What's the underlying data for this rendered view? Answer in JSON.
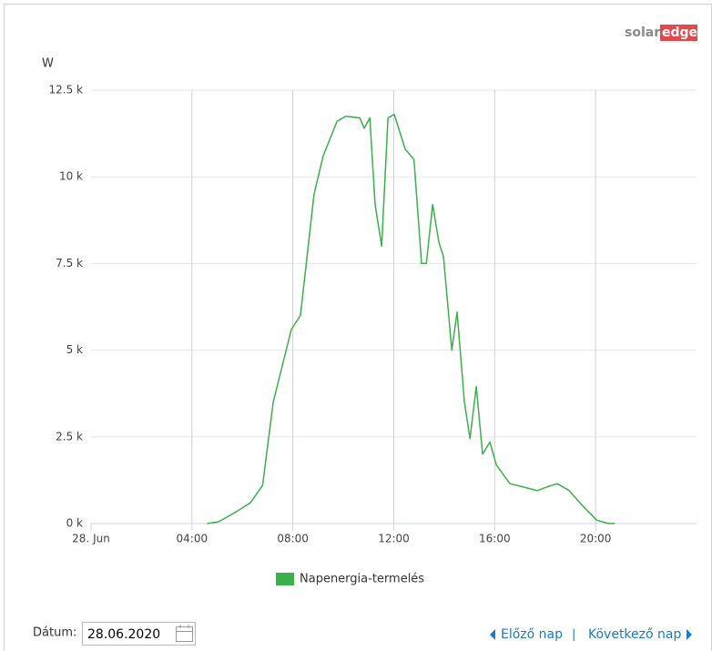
{
  "logo": {
    "solar": "solar",
    "edge": "edge"
  },
  "chart_data": {
    "type": "line",
    "y_label": "W",
    "x": [
      4.6,
      5.05,
      5.78,
      6.32,
      6.8,
      7.22,
      7.94,
      8.3,
      8.84,
      9.2,
      9.75,
      10.1,
      10.65,
      10.83,
      11.05,
      11.26,
      11.52,
      11.77,
      12.02,
      12.45,
      12.8,
      13.1,
      13.29,
      13.54,
      13.79,
      13.97,
      14.3,
      14.51,
      14.8,
      15.02,
      15.27,
      15.52,
      15.81,
      16.06,
      16.6,
      17.15,
      17.69,
      18.05,
      18.48,
      18.95,
      19.5,
      20.04,
      20.5,
      20.76
    ],
    "series": [
      {
        "name": "Napenergia-termelés",
        "color": "#3cb04a",
        "values": [
          0,
          50,
          350,
          600,
          1100,
          3500,
          5600,
          6000,
          9500,
          10600,
          11600,
          11750,
          11700,
          11400,
          11700,
          9200,
          8000,
          11700,
          11800,
          10800,
          10500,
          7500,
          7500,
          9200,
          8100,
          7700,
          5000,
          6100,
          3500,
          2450,
          3950,
          2000,
          2350,
          1700,
          1150,
          1050,
          950,
          1050,
          1150,
          950,
          500,
          100,
          0,
          0
        ]
      }
    ],
    "xlim": [
      0,
      24
    ],
    "xticks": [
      {
        "value": 0,
        "label": "28. Jun"
      },
      {
        "value": 4,
        "label": "04:00"
      },
      {
        "value": 8,
        "label": "08:00"
      },
      {
        "value": 12,
        "label": "12:00"
      },
      {
        "value": 16,
        "label": "16:00"
      },
      {
        "value": 20,
        "label": "20:00"
      }
    ],
    "ylim": [
      0,
      12500
    ],
    "yticks": [
      {
        "value": 0,
        "label": "0 k"
      },
      {
        "value": 2500,
        "label": "2.5 k"
      },
      {
        "value": 5000,
        "label": "5 k"
      },
      {
        "value": 7500,
        "label": "7.5 k"
      },
      {
        "value": 10000,
        "label": "10 k"
      },
      {
        "value": 12500,
        "label": "12.5 k"
      }
    ],
    "grid": true,
    "legend": "bottom"
  },
  "footer": {
    "date_label": "Dátum:",
    "date_value": "28.06.2020",
    "prev": "Előző nap",
    "separator": "|",
    "next": "Következő nap"
  }
}
